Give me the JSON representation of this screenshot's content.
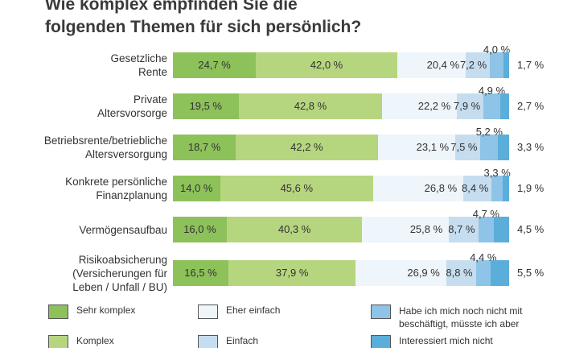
{
  "chart_data": {
    "type": "bar",
    "stacked": true,
    "orientation": "horizontal",
    "title_lines": [
      "Wie komplex empfinden Sie die",
      "folgenden Themen für sich persönlich?"
    ],
    "categories": [
      [
        "Gesetzliche",
        "Rente"
      ],
      [
        "Private",
        "Altersvorsorge"
      ],
      [
        "Betriebsrente/betriebliche",
        "Altersversorgung"
      ],
      [
        "Konkrete persönliche",
        "Finanzplanung"
      ],
      [
        "Vermögensaufbau"
      ],
      [
        "Risikoabsicherung",
        "(Versicherungen für",
        "Leben / Unfall / BU)"
      ]
    ],
    "series": [
      {
        "name": "Sehr komplex",
        "color": "#8dc15a",
        "values": [
          24.7,
          19.5,
          18.7,
          14.0,
          16.0,
          16.5
        ]
      },
      {
        "name": "Komplex",
        "color": "#b6d57f",
        "values": [
          42.0,
          42.8,
          42.2,
          45.6,
          40.3,
          37.9
        ]
      },
      {
        "name": "Eher einfach",
        "color": "#eef5fb",
        "values": [
          20.4,
          22.2,
          23.1,
          26.8,
          25.8,
          26.9
        ]
      },
      {
        "name": "Einfach",
        "color": "#c5ddef",
        "values": [
          7.2,
          7.9,
          7.5,
          8.4,
          8.7,
          8.8
        ]
      },
      {
        "name": "Habe ich mich noch nicht mit beschäftigt, müsste ich aber",
        "color": "#8ec4e7",
        "values": [
          4.0,
          4.9,
          5.2,
          3.3,
          4.7,
          4.4
        ]
      },
      {
        "name": "Interessiert mich nicht",
        "color": "#5badda",
        "values": [
          1.7,
          2.7,
          3.3,
          1.9,
          4.5,
          5.5
        ]
      }
    ],
    "value_suffix": " %"
  }
}
